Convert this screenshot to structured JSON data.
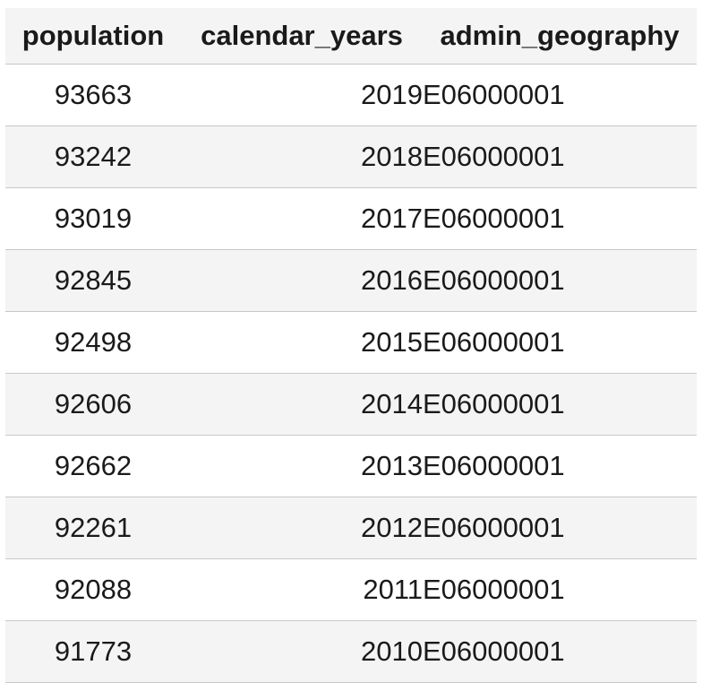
{
  "table": {
    "headers": [
      "population",
      "calendar_years",
      "admin_geography"
    ],
    "rows": [
      [
        "93663",
        "2019",
        "E06000001"
      ],
      [
        "93242",
        "2018",
        "E06000001"
      ],
      [
        "93019",
        "2017",
        "E06000001"
      ],
      [
        "92845",
        "2016",
        "E06000001"
      ],
      [
        "92498",
        "2015",
        "E06000001"
      ],
      [
        "92606",
        "2014",
        "E06000001"
      ],
      [
        "92662",
        "2013",
        "E06000001"
      ],
      [
        "92261",
        "2012",
        "E06000001"
      ],
      [
        "92088",
        "2011",
        "E06000001"
      ],
      [
        "91773",
        "2010",
        "E06000001"
      ]
    ]
  }
}
